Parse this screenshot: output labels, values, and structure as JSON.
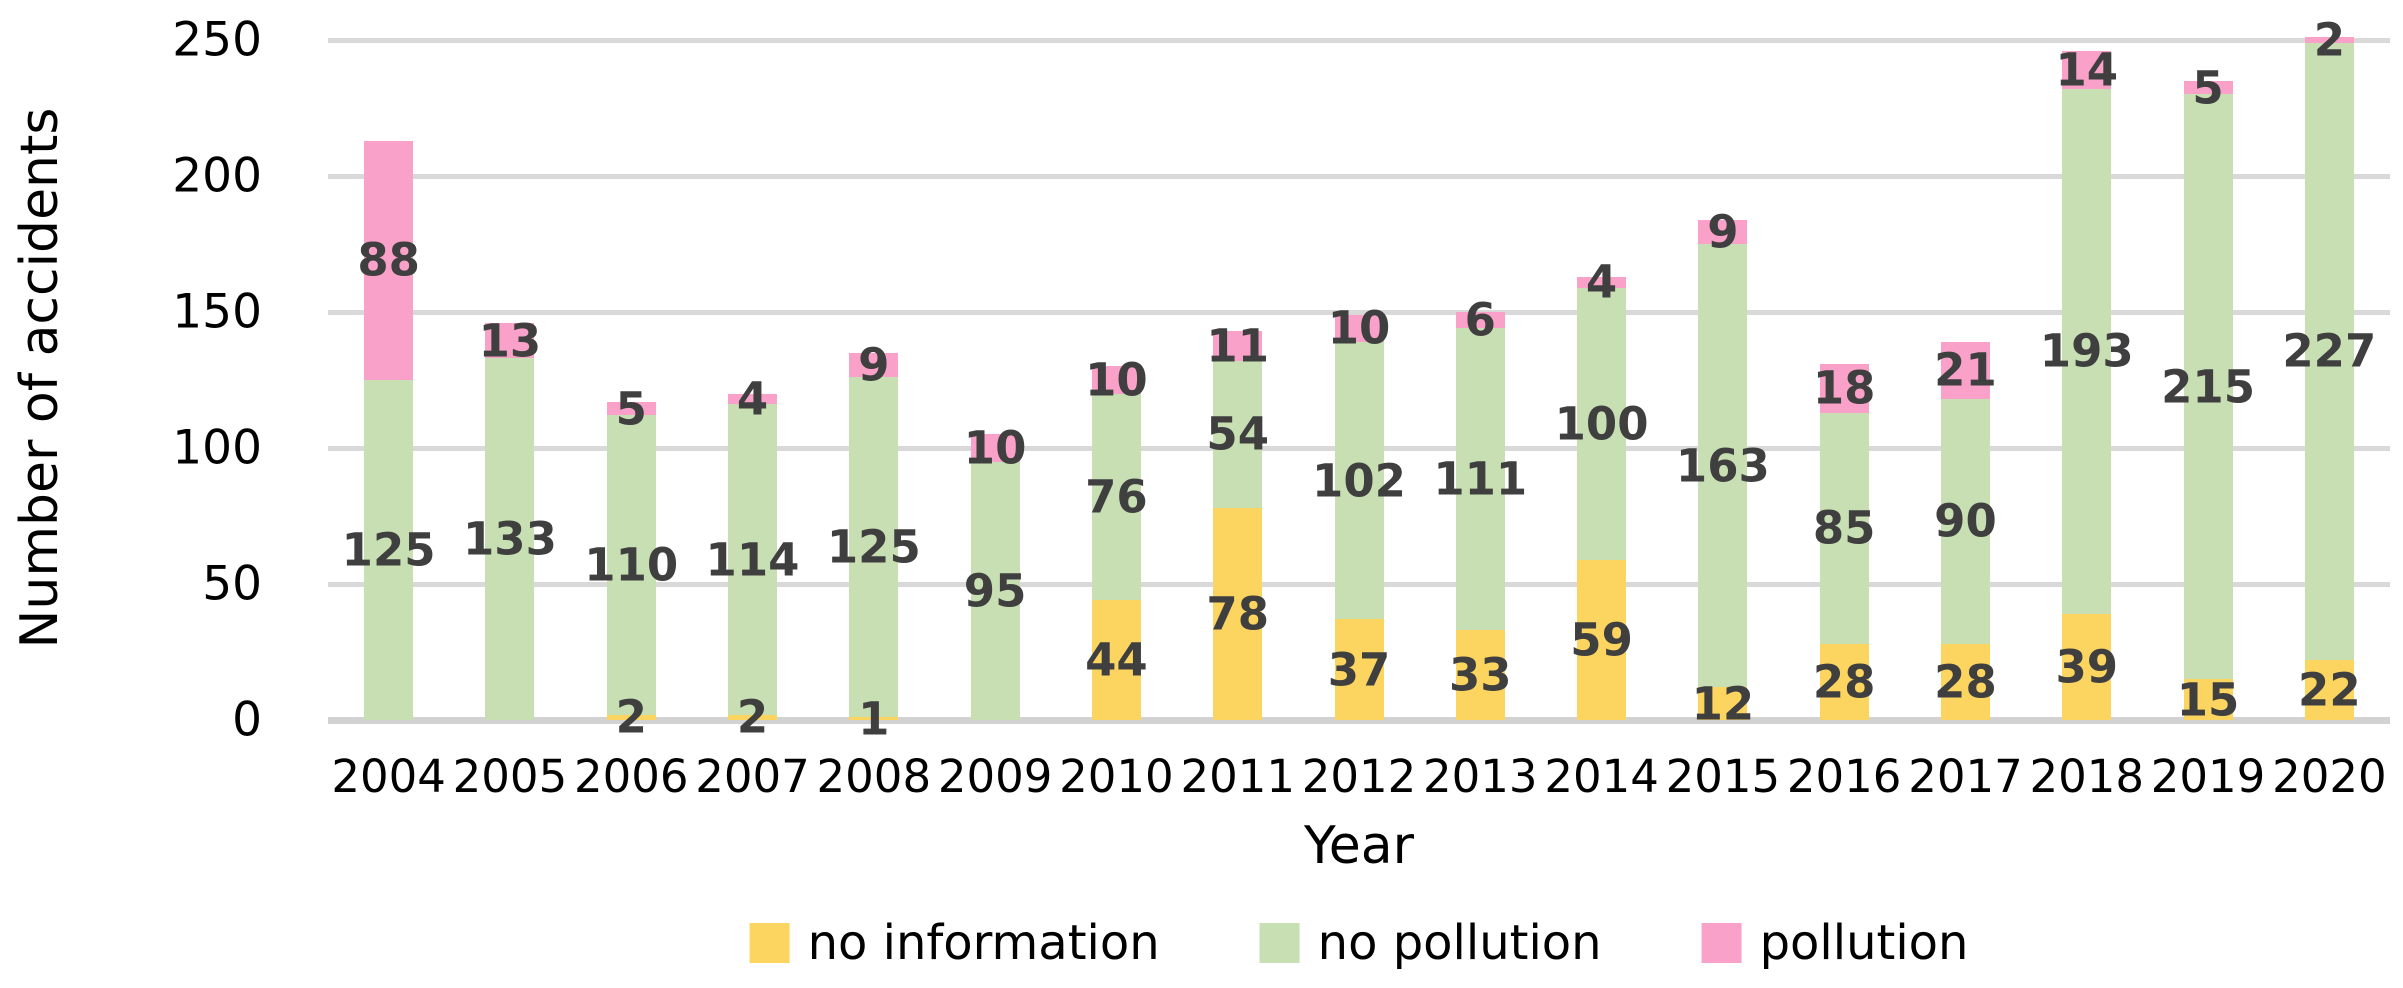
{
  "chart_data": {
    "type": "bar",
    "stacked": true,
    "title": "",
    "xlabel": "Year",
    "ylabel": "Number of accidents",
    "ylim": [
      0,
      250
    ],
    "yticks": [
      0,
      50,
      100,
      150,
      200,
      250
    ],
    "grid": true,
    "legend_position": "bottom",
    "categories": [
      "2004",
      "2005",
      "2006",
      "2007",
      "2008",
      "2009",
      "2010",
      "2011",
      "2012",
      "2013",
      "2014",
      "2015",
      "2016",
      "2017",
      "2018",
      "2019",
      "2020"
    ],
    "series": [
      {
        "name": "no information",
        "color": "#FCD460",
        "values": [
          0,
          0,
          2,
          2,
          1,
          0,
          44,
          78,
          37,
          33,
          59,
          12,
          28,
          28,
          39,
          15,
          22
        ]
      },
      {
        "name": "no pollution",
        "color": "#C7DFB2",
        "values": [
          125,
          133,
          110,
          114,
          125,
          95,
          76,
          54,
          102,
          111,
          100,
          163,
          85,
          90,
          193,
          215,
          227
        ]
      },
      {
        "name": "pollution",
        "color": "#F9A1C9",
        "values": [
          88,
          13,
          5,
          4,
          9,
          10,
          10,
          11,
          10,
          6,
          4,
          9,
          18,
          21,
          14,
          5,
          2
        ]
      }
    ],
    "colors": {
      "gridline": "#D9D9D9",
      "axis_line": "#D2D2D2",
      "data_label": "#3F3F3F"
    }
  }
}
